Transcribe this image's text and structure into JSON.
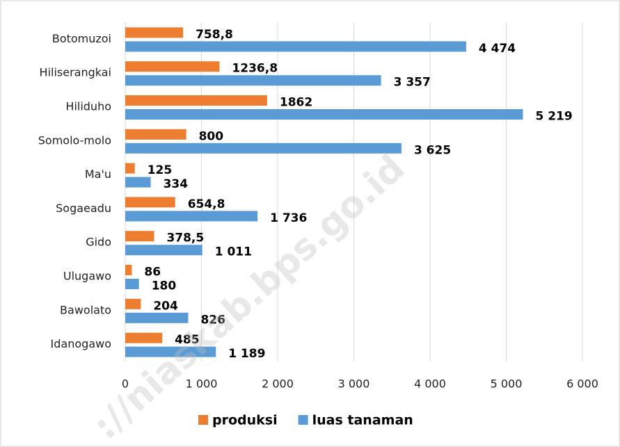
{
  "chart_data": {
    "type": "hbar",
    "categories": [
      "Botomuzoi",
      "Hiliserangkai",
      "Hiliduho",
      "Somolo-molo",
      "Ma'u",
      "Sogaeadu",
      "Gido",
      "Ulugawo",
      "Bawolato",
      "Idanogawo"
    ],
    "series": [
      {
        "name": "produksi",
        "color": "#ed7d31",
        "values": [
          758.8,
          1236.8,
          1862,
          800,
          125,
          654.8,
          378.5,
          86,
          204,
          485
        ],
        "value_labels": [
          "758,8",
          "1236,8",
          "1862",
          "800",
          "125",
          "654,8",
          "378,5",
          "86",
          "204",
          "485"
        ]
      },
      {
        "name": "luas tanaman",
        "color": "#5b9bd5",
        "values": [
          4474,
          3357,
          5219,
          3625,
          334,
          1736,
          1011,
          180,
          826,
          1189
        ],
        "value_labels": [
          "4 474",
          "3 357",
          "5 219",
          "3 625",
          "334",
          "1 736",
          "1 011",
          "180",
          "826",
          "1 189"
        ]
      }
    ],
    "xlim": [
      0,
      6000
    ],
    "xticks": [
      0,
      {
        "value": 1000,
        "label": "1 000"
      },
      {
        "value": 2000,
        "label": "2 000"
      },
      {
        "value": 3000,
        "label": "3 000"
      },
      {
        "value": 4000,
        "label": "4 000"
      },
      {
        "value": 5000,
        "label": "5 000"
      },
      {
        "value": 6000,
        "label": "6 000"
      }
    ],
    "grid": true,
    "legend": "bottom",
    "watermark": "://niaskab.bps.go.id"
  }
}
